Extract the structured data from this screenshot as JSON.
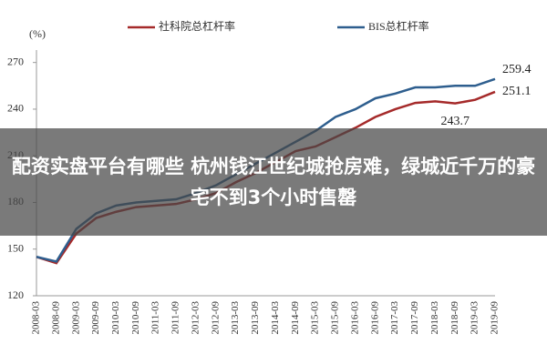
{
  "chart_data": {
    "type": "line",
    "y_label": "(%)",
    "categories": [
      "2008-03",
      "2008-09",
      "2009-03",
      "2009-09",
      "2010-03",
      "2010-09",
      "2011-03",
      "2011-09",
      "2012-03",
      "2012-09",
      "2013-03",
      "2013-09",
      "2014-03",
      "2014-09",
      "2015-03",
      "2015-09",
      "2016-03",
      "2016-09",
      "2017-03",
      "2017-09",
      "2018-03",
      "2018-09",
      "2019-03",
      "2019-09"
    ],
    "series": [
      {
        "name": "社科院总杠杆率",
        "color": "#a52a2a",
        "values": [
          145,
          141,
          160,
          170,
          174,
          177,
          178,
          179,
          182,
          186,
          193,
          199,
          206,
          213,
          216,
          222,
          228,
          235,
          240,
          244,
          245,
          243.7,
          246,
          251.1
        ],
        "value_labels": [
          null,
          null,
          null,
          null,
          null,
          null,
          null,
          null,
          null,
          null,
          null,
          null,
          null,
          null,
          null,
          null,
          null,
          null,
          null,
          null,
          null,
          "243.7",
          null,
          "251.1"
        ]
      },
      {
        "name": "BIS总杠杆率",
        "color": "#2e5e8e",
        "values": [
          145,
          142,
          163,
          173,
          178,
          180,
          181,
          182,
          186,
          191,
          198,
          205,
          212,
          219,
          226,
          235,
          240,
          247,
          250,
          254,
          254,
          255,
          255,
          259.4
        ],
        "value_labels": [
          null,
          null,
          null,
          null,
          null,
          null,
          null,
          null,
          null,
          null,
          null,
          null,
          null,
          null,
          null,
          null,
          null,
          null,
          null,
          null,
          null,
          null,
          null,
          "259.4"
        ]
      }
    ],
    "ylim": [
      120,
      278
    ],
    "yticks": [
      120,
      150,
      180,
      210,
      240,
      270
    ],
    "grid": false
  },
  "overlay": {
    "title": "配资实盘平台有哪些 杭州钱江世纪城抢房难，绿城近千万的豪宅不到3个小时售罄"
  }
}
